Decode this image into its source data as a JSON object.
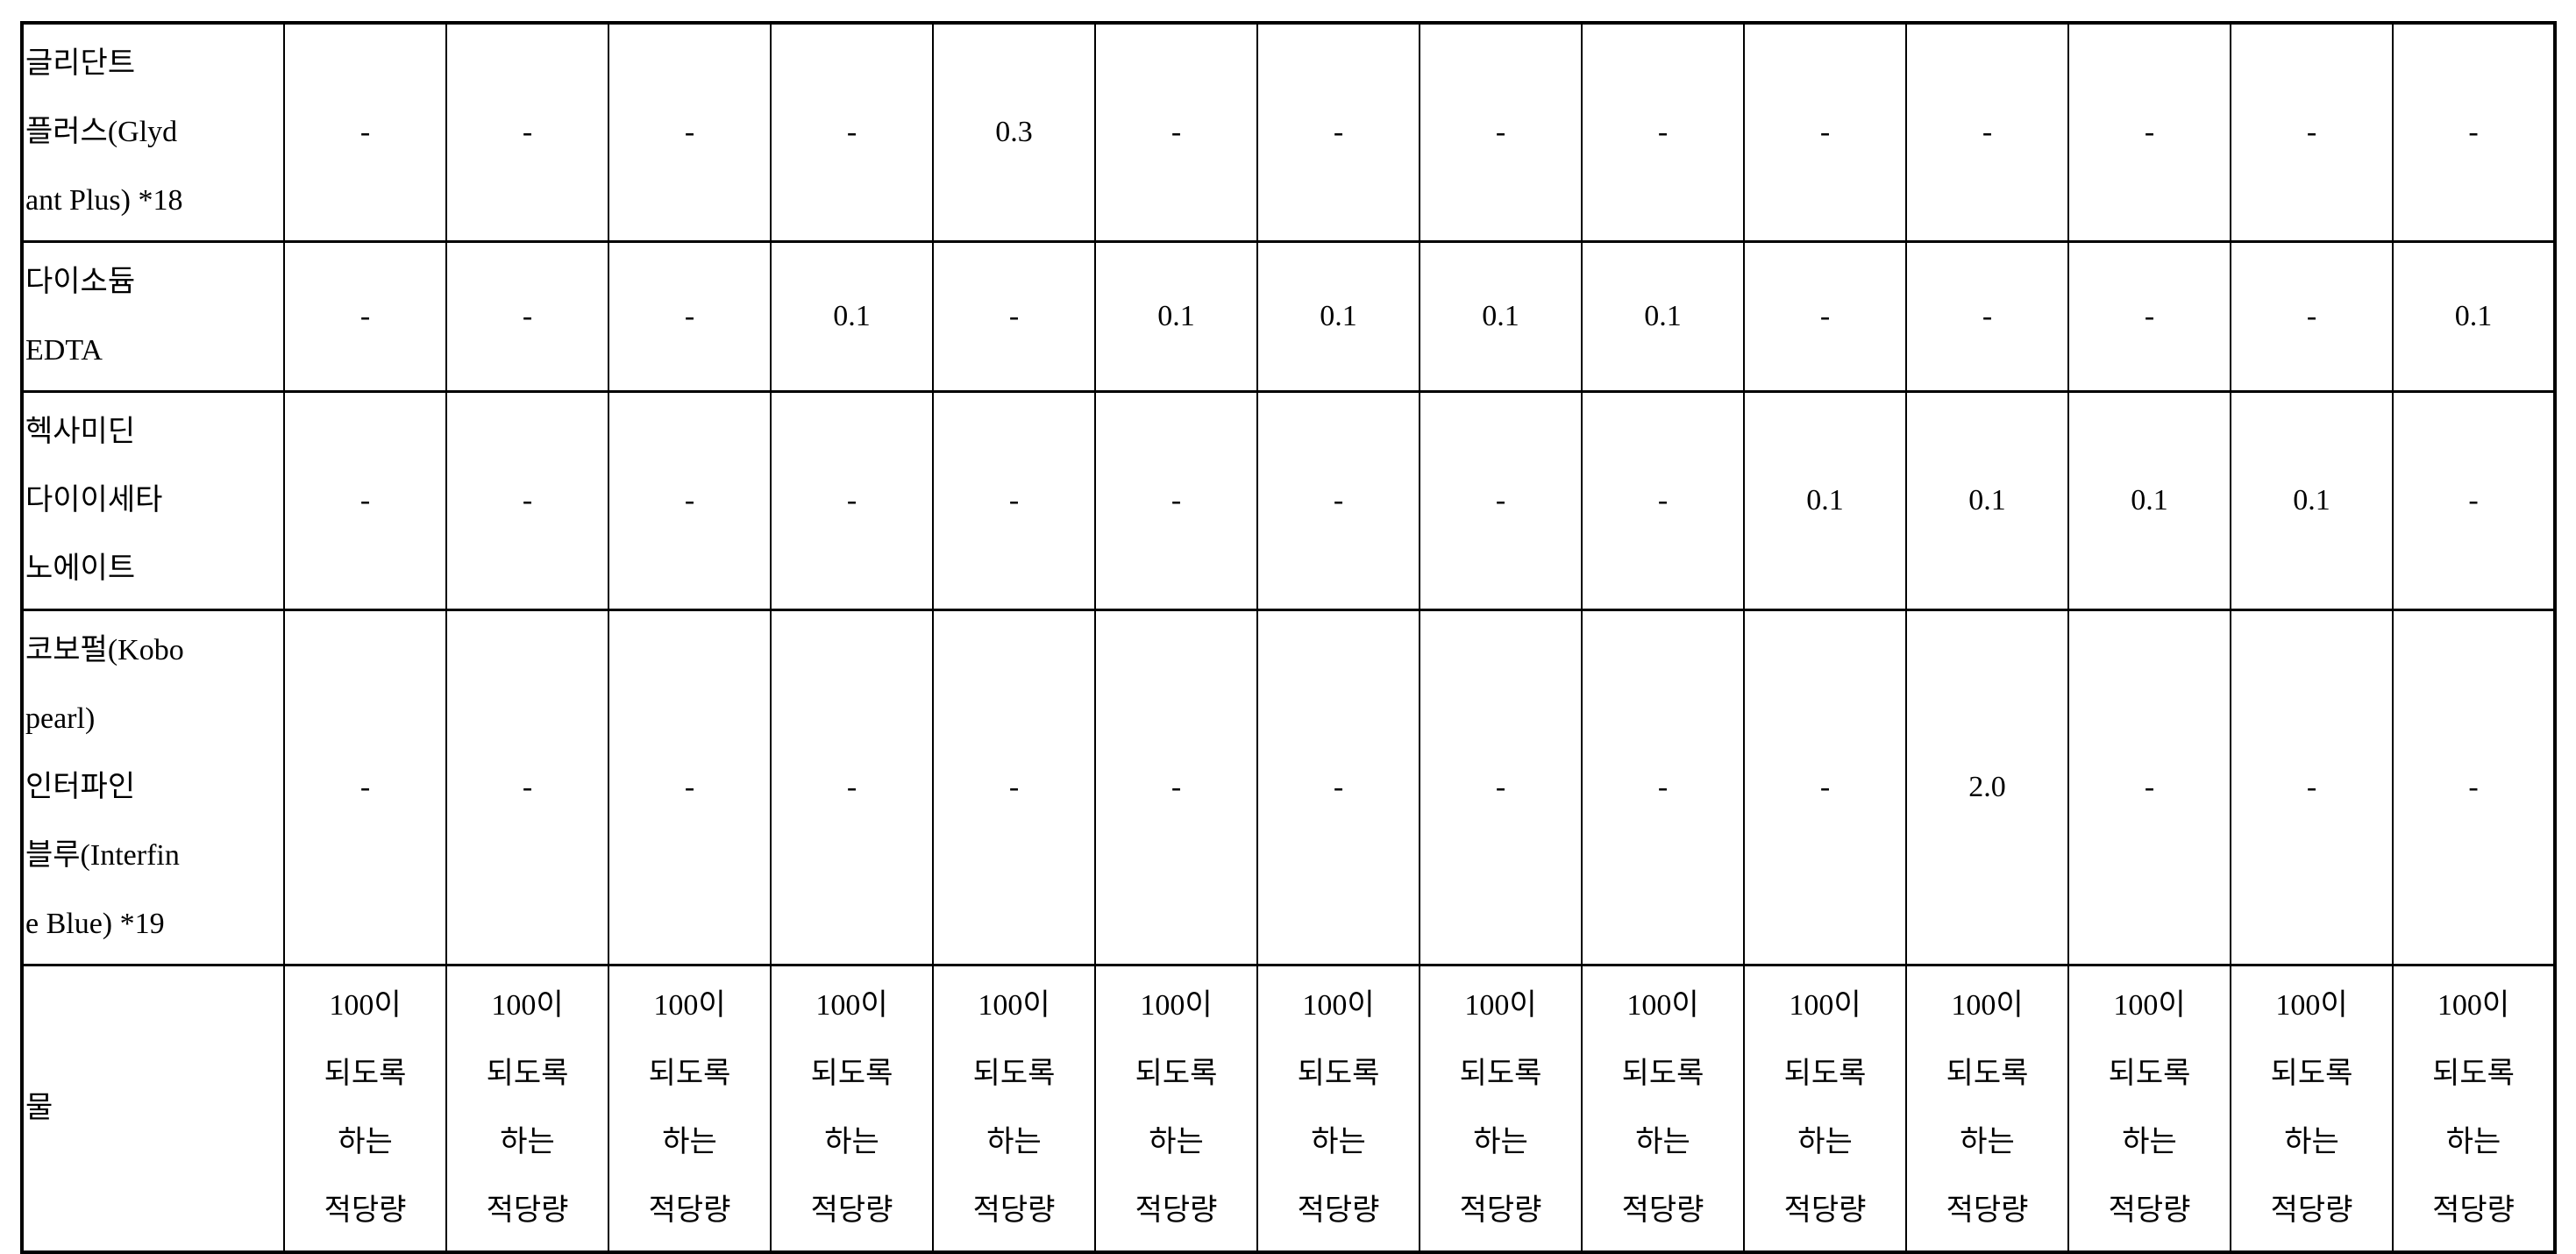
{
  "colors": {
    "background": "#ffffff",
    "border": "#000000",
    "text": "#000000"
  },
  "table": {
    "data_column_count": 14,
    "rows": [
      {
        "label": "글리단트 플러스(Glydant Plus) *18",
        "label_lines": [
          "글리단트",
          "플러스(Glyd",
          "ant Plus) *18"
        ],
        "values": [
          "-",
          "-",
          "-",
          "-",
          "0.3",
          "-",
          "-",
          "-",
          "-",
          "-",
          "-",
          "-",
          "-",
          "-"
        ]
      },
      {
        "label": "다이소듐 EDTA",
        "label_lines": [
          "다이소듐",
          "EDTA"
        ],
        "values": [
          "-",
          "-",
          "-",
          "0.1",
          "-",
          "0.1",
          "0.1",
          "0.1",
          "0.1",
          "-",
          "-",
          "-",
          "-",
          "0.1"
        ]
      },
      {
        "label": "헥사미딘 다이이세타노에이트",
        "label_lines": [
          "헥사미딘",
          "다이이세타",
          "노에이트"
        ],
        "values": [
          "-",
          "-",
          "-",
          "-",
          "-",
          "-",
          "-",
          "-",
          "-",
          "0.1",
          "0.1",
          "0.1",
          "0.1",
          "-"
        ]
      },
      {
        "label": "코보펄(Kobo pearl) 인터파인 블루(Interfine Blue) *19",
        "label_lines": [
          "코보펄(Kobo",
          "pearl)",
          "인터파인",
          "블루(Interfin",
          "e Blue) *19"
        ],
        "values": [
          "-",
          "-",
          "-",
          "-",
          "-",
          "-",
          "-",
          "-",
          "-",
          "-",
          "2.0",
          "-",
          "-",
          "-"
        ]
      },
      {
        "label": "물",
        "label_lines": [
          "물"
        ],
        "values": [
          [
            "100이",
            "되도록",
            "하는",
            "적당량"
          ],
          [
            "100이",
            "되도록",
            "하는",
            "적당량"
          ],
          [
            "100이",
            "되도록",
            "하는",
            "적당량"
          ],
          [
            "100이",
            "되도록",
            "하는",
            "적당량"
          ],
          [
            "100이",
            "되도록",
            "하는",
            "적당량"
          ],
          [
            "100이",
            "되도록",
            "하는",
            "적당량"
          ],
          [
            "100이",
            "되도록",
            "하는",
            "적당량"
          ],
          [
            "100이",
            "되도록",
            "하는",
            "적당량"
          ],
          [
            "100이",
            "되도록",
            "하는",
            "적당량"
          ],
          [
            "100이",
            "되도록",
            "하는",
            "적당량"
          ],
          [
            "100이",
            "되도록",
            "하는",
            "적당량"
          ],
          [
            "100이",
            "되도록",
            "하는",
            "적당량"
          ],
          [
            "100이",
            "되도록",
            "하는",
            "적당량"
          ],
          [
            "100이",
            "되도록",
            "하는",
            "적당량"
          ]
        ]
      }
    ]
  }
}
